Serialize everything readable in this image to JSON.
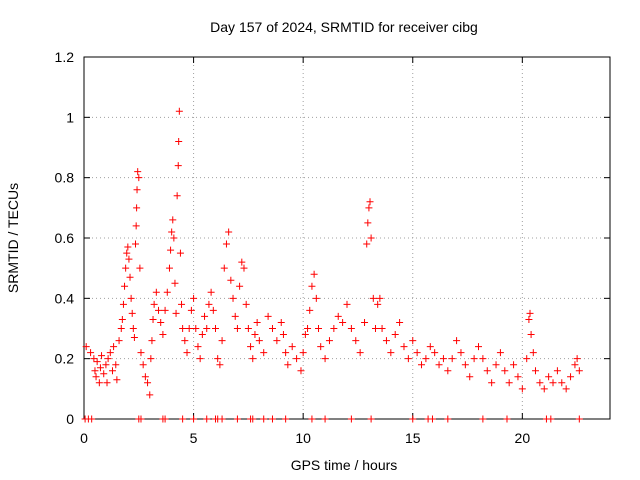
{
  "chart_data": {
    "type": "scatter",
    "title": "Day 157 of 2024, SRMTID for receiver cibg",
    "xlabel": "GPS time / hours",
    "ylabel": "SRMTID / TECUs",
    "xlim": [
      0,
      24
    ],
    "ylim": [
      0,
      1.2
    ],
    "x_ticks": [
      0,
      5,
      10,
      15,
      20
    ],
    "x_tick_labels": [
      "0",
      "5",
      "10",
      "15",
      "20"
    ],
    "y_ticks": [
      0,
      0.2,
      0.4,
      0.6,
      0.8,
      1.0,
      1.2
    ],
    "y_tick_labels": [
      "0",
      "0.2",
      "0.4",
      "0.6",
      "0.8",
      "1",
      "1.2"
    ],
    "grid": true,
    "marker": "plus",
    "color": "#ff0000",
    "series": [
      {
        "name": "SRMTID",
        "points": [
          [
            0.1,
            0.24
          ],
          [
            0.3,
            0.22
          ],
          [
            0.45,
            0.2
          ],
          [
            0.5,
            0.16
          ],
          [
            0.55,
            0.14
          ],
          [
            0.6,
            0.19
          ],
          [
            0.7,
            0.12
          ],
          [
            0.75,
            0.17
          ],
          [
            0.8,
            0.21
          ],
          [
            0.9,
            0.15
          ],
          [
            1.0,
            0.18
          ],
          [
            1.05,
            0.12
          ],
          [
            1.1,
            0.2
          ],
          [
            1.2,
            0.22
          ],
          [
            1.3,
            0.16
          ],
          [
            1.35,
            0.24
          ],
          [
            1.45,
            0.18
          ],
          [
            1.5,
            0.13
          ],
          [
            1.6,
            0.26
          ],
          [
            1.7,
            0.3
          ],
          [
            1.75,
            0.33
          ],
          [
            1.8,
            0.38
          ],
          [
            1.85,
            0.44
          ],
          [
            1.9,
            0.5
          ],
          [
            1.95,
            0.55
          ],
          [
            2.0,
            0.57
          ],
          [
            2.05,
            0.53
          ],
          [
            2.1,
            0.47
          ],
          [
            2.15,
            0.4
          ],
          [
            2.2,
            0.35
          ],
          [
            2.25,
            0.3
          ],
          [
            2.3,
            0.27
          ],
          [
            2.35,
            0.58
          ],
          [
            2.38,
            0.64
          ],
          [
            2.4,
            0.7
          ],
          [
            2.42,
            0.76
          ],
          [
            2.45,
            0.82
          ],
          [
            2.5,
            0.8
          ],
          [
            2.55,
            0.5
          ],
          [
            2.6,
            0.22
          ],
          [
            2.7,
            0.18
          ],
          [
            2.8,
            0.14
          ],
          [
            2.9,
            0.12
          ],
          [
            3.0,
            0.08
          ],
          [
            3.05,
            0.2
          ],
          [
            3.1,
            0.26
          ],
          [
            3.15,
            0.33
          ],
          [
            3.2,
            0.38
          ],
          [
            3.3,
            0.42
          ],
          [
            3.4,
            0.36
          ],
          [
            3.5,
            0.32
          ],
          [
            3.6,
            0.28
          ],
          [
            3.7,
            0.36
          ],
          [
            3.8,
            0.42
          ],
          [
            3.9,
            0.5
          ],
          [
            3.95,
            0.56
          ],
          [
            4.0,
            0.62
          ],
          [
            4.05,
            0.66
          ],
          [
            4.1,
            0.6
          ],
          [
            4.15,
            0.45
          ],
          [
            4.2,
            0.35
          ],
          [
            4.25,
            0.74
          ],
          [
            4.3,
            0.84
          ],
          [
            4.32,
            0.92
          ],
          [
            4.35,
            1.02
          ],
          [
            4.4,
            0.55
          ],
          [
            4.45,
            0.38
          ],
          [
            4.5,
            0.3
          ],
          [
            4.6,
            0.26
          ],
          [
            4.7,
            0.22
          ],
          [
            4.8,
            0.3
          ],
          [
            4.9,
            0.36
          ],
          [
            5.0,
            0.4
          ],
          [
            5.1,
            0.3
          ],
          [
            5.2,
            0.24
          ],
          [
            5.3,
            0.2
          ],
          [
            5.4,
            0.28
          ],
          [
            5.5,
            0.34
          ],
          [
            5.6,
            0.3
          ],
          [
            5.7,
            0.38
          ],
          [
            5.8,
            0.42
          ],
          [
            5.9,
            0.36
          ],
          [
            6.0,
            0.3
          ],
          [
            6.1,
            0.2
          ],
          [
            6.2,
            0.18
          ],
          [
            6.3,
            0.26
          ],
          [
            6.4,
            0.5
          ],
          [
            6.5,
            0.58
          ],
          [
            6.6,
            0.62
          ],
          [
            6.7,
            0.46
          ],
          [
            6.8,
            0.4
          ],
          [
            6.9,
            0.34
          ],
          [
            7.0,
            0.3
          ],
          [
            7.1,
            0.44
          ],
          [
            7.2,
            0.52
          ],
          [
            7.3,
            0.5
          ],
          [
            7.4,
            0.38
          ],
          [
            7.5,
            0.3
          ],
          [
            7.6,
            0.24
          ],
          [
            7.7,
            0.2
          ],
          [
            7.8,
            0.28
          ],
          [
            7.9,
            0.32
          ],
          [
            8.0,
            0.26
          ],
          [
            8.2,
            0.22
          ],
          [
            8.4,
            0.34
          ],
          [
            8.6,
            0.3
          ],
          [
            8.8,
            0.26
          ],
          [
            9.0,
            0.32
          ],
          [
            9.1,
            0.28
          ],
          [
            9.2,
            0.22
          ],
          [
            9.3,
            0.18
          ],
          [
            9.5,
            0.24
          ],
          [
            9.7,
            0.2
          ],
          [
            9.9,
            0.16
          ],
          [
            10.0,
            0.22
          ],
          [
            10.1,
            0.28
          ],
          [
            10.2,
            0.3
          ],
          [
            10.3,
            0.36
          ],
          [
            10.4,
            0.44
          ],
          [
            10.5,
            0.48
          ],
          [
            10.6,
            0.4
          ],
          [
            10.7,
            0.3
          ],
          [
            10.8,
            0.24
          ],
          [
            11.0,
            0.2
          ],
          [
            11.2,
            0.26
          ],
          [
            11.4,
            0.3
          ],
          [
            11.6,
            0.34
          ],
          [
            11.8,
            0.32
          ],
          [
            12.0,
            0.38
          ],
          [
            12.2,
            0.3
          ],
          [
            12.4,
            0.26
          ],
          [
            12.6,
            0.22
          ],
          [
            12.8,
            0.32
          ],
          [
            12.9,
            0.58
          ],
          [
            12.95,
            0.65
          ],
          [
            13.0,
            0.7
          ],
          [
            13.05,
            0.72
          ],
          [
            13.1,
            0.6
          ],
          [
            13.2,
            0.4
          ],
          [
            13.3,
            0.3
          ],
          [
            13.4,
            0.38
          ],
          [
            13.5,
            0.4
          ],
          [
            13.6,
            0.3
          ],
          [
            13.8,
            0.26
          ],
          [
            14.0,
            0.22
          ],
          [
            14.2,
            0.28
          ],
          [
            14.4,
            0.32
          ],
          [
            14.6,
            0.24
          ],
          [
            14.8,
            0.2
          ],
          [
            15.0,
            0.26
          ],
          [
            15.2,
            0.22
          ],
          [
            15.4,
            0.18
          ],
          [
            15.6,
            0.2
          ],
          [
            15.8,
            0.24
          ],
          [
            16.0,
            0.22
          ],
          [
            16.2,
            0.18
          ],
          [
            16.4,
            0.2
          ],
          [
            16.6,
            0.16
          ],
          [
            16.8,
            0.2
          ],
          [
            17.0,
            0.26
          ],
          [
            17.2,
            0.22
          ],
          [
            17.4,
            0.18
          ],
          [
            17.6,
            0.14
          ],
          [
            17.8,
            0.2
          ],
          [
            18.0,
            0.24
          ],
          [
            18.2,
            0.2
          ],
          [
            18.4,
            0.16
          ],
          [
            18.6,
            0.12
          ],
          [
            18.8,
            0.18
          ],
          [
            19.0,
            0.22
          ],
          [
            19.2,
            0.16
          ],
          [
            19.4,
            0.12
          ],
          [
            19.6,
            0.18
          ],
          [
            19.8,
            0.14
          ],
          [
            20.0,
            0.1
          ],
          [
            20.2,
            0.2
          ],
          [
            20.3,
            0.33
          ],
          [
            20.35,
            0.35
          ],
          [
            20.4,
            0.28
          ],
          [
            20.5,
            0.22
          ],
          [
            20.6,
            0.16
          ],
          [
            20.8,
            0.12
          ],
          [
            21.0,
            0.1
          ],
          [
            21.2,
            0.14
          ],
          [
            21.4,
            0.12
          ],
          [
            21.6,
            0.16
          ],
          [
            21.8,
            0.12
          ],
          [
            22.0,
            0.1
          ],
          [
            22.2,
            0.14
          ],
          [
            22.4,
            0.18
          ],
          [
            22.5,
            0.2
          ],
          [
            22.6,
            0.16
          ]
        ],
        "zero_markers": [
          0.05,
          0.2,
          0.35,
          2.5,
          2.6,
          3.6,
          3.7,
          4.5,
          5.0,
          5.6,
          6.0,
          6.1,
          6.3,
          7.0,
          7.6,
          7.7,
          8.2,
          8.6,
          9.2,
          10.4,
          11.0,
          12.2,
          13.1,
          15.0,
          15.7,
          15.9,
          16.6,
          18.2,
          19.3,
          21.1,
          21.3,
          22.6
        ]
      }
    ]
  }
}
